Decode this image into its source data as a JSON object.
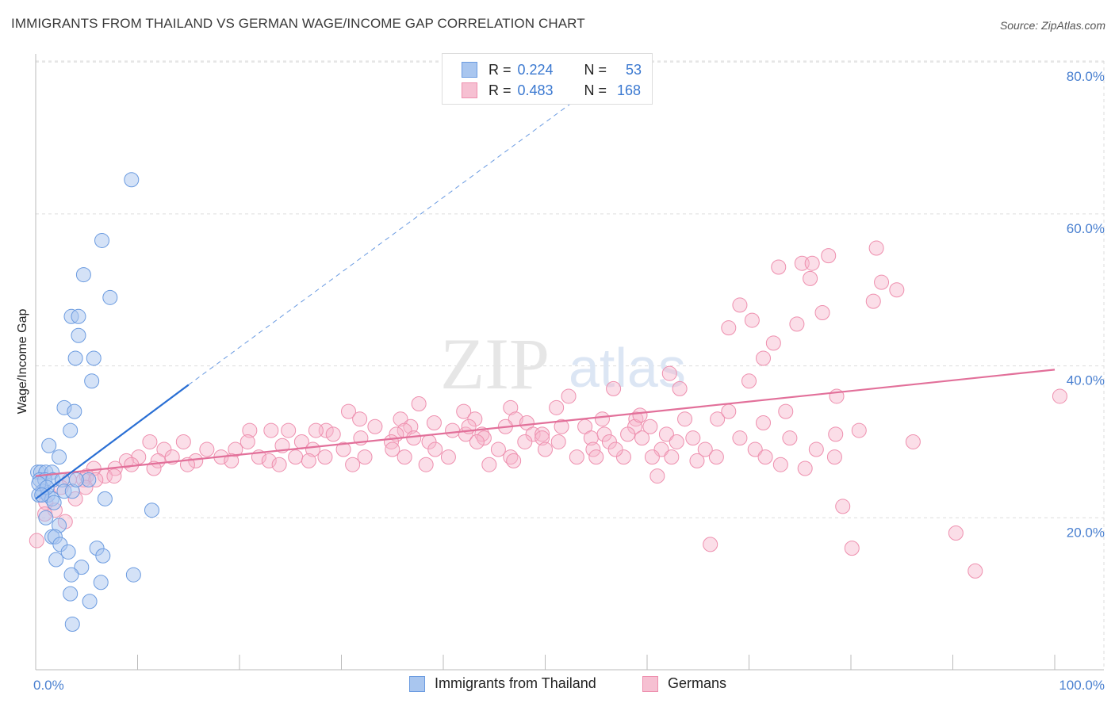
{
  "title": "IMMIGRANTS FROM THAILAND VS GERMAN WAGE/INCOME GAP CORRELATION CHART",
  "source": "Source: ZipAtlas.com",
  "watermark": {
    "zip": "ZIP",
    "atlas": "atlas"
  },
  "legend": {
    "rows": [
      {
        "r_label": "R =",
        "r_value": "0.224",
        "n_label": "N =",
        "n_value": "53"
      },
      {
        "r_label": "R =",
        "r_value": "0.483",
        "n_label": "N =",
        "n_value": "168"
      }
    ]
  },
  "bottom_legend": {
    "series1": "Immigrants from Thailand",
    "series2": "Germans"
  },
  "colors": {
    "blue_fill": "#a9c6ef",
    "blue_stroke": "#6b9be0",
    "blue_line": "#2a6fd4",
    "pink_fill": "#f6b6cc",
    "pink_stroke": "#ee8fae",
    "pink_line": "#e2709a",
    "tick_text": "#4a80d0",
    "grid": "#dddddd"
  },
  "chart_data": {
    "type": "scatter",
    "title": "IMMIGRANTS FROM THAILAND VS GERMAN WAGE/INCOME GAP CORRELATION CHART",
    "xlabel": "",
    "ylabel": "Wage/Income Gap",
    "xlim": [
      0,
      100
    ],
    "ylim": [
      0,
      85
    ],
    "x_ticks": [
      {
        "v": 0,
        "label": "0.0%"
      },
      {
        "v": 100,
        "label": "100.0%"
      }
    ],
    "y_ticks": [
      {
        "v": 20,
        "label": "20.0%"
      },
      {
        "v": 40,
        "label": "40.0%"
      },
      {
        "v": 60,
        "label": "60.0%"
      },
      {
        "v": 80,
        "label": "80.0%"
      }
    ],
    "grid": "horizontal dashed",
    "series": [
      {
        "name": "Immigrants from Thailand",
        "R": 0.224,
        "N": 53,
        "trend": {
          "x0": 0,
          "y0": 22.5,
          "x1": 15,
          "y1": 37.5,
          "dashed_to_x": 54,
          "dashed_to_y": 76
        },
        "points": [
          [
            9.4,
            64.5
          ],
          [
            6.5,
            56.5
          ],
          [
            4.7,
            52.0
          ],
          [
            7.3,
            49.0
          ],
          [
            3.5,
            46.5
          ],
          [
            4.2,
            46.5
          ],
          [
            4.2,
            44.0
          ],
          [
            3.9,
            41.0
          ],
          [
            5.7,
            41.0
          ],
          [
            5.5,
            38.0
          ],
          [
            2.8,
            34.5
          ],
          [
            3.8,
            34.0
          ],
          [
            3.4,
            31.5
          ],
          [
            1.3,
            29.5
          ],
          [
            2.3,
            28.0
          ],
          [
            0.2,
            26.0
          ],
          [
            0.5,
            26.0
          ],
          [
            1.0,
            26.0
          ],
          [
            1.6,
            26.0
          ],
          [
            0.4,
            25.0
          ],
          [
            0.9,
            25.0
          ],
          [
            1.7,
            25.0
          ],
          [
            2.6,
            25.0
          ],
          [
            5.2,
            25.0
          ],
          [
            0.7,
            23.5
          ],
          [
            2.8,
            23.5
          ],
          [
            3.6,
            23.5
          ],
          [
            0.3,
            23.0
          ],
          [
            1.2,
            23.0
          ],
          [
            1.6,
            22.5
          ],
          [
            6.8,
            22.5
          ],
          [
            1.8,
            22.0
          ],
          [
            11.4,
            21.0
          ],
          [
            1.0,
            20.0
          ],
          [
            2.3,
            19.0
          ],
          [
            1.6,
            17.5
          ],
          [
            1.9,
            17.5
          ],
          [
            2.4,
            16.5
          ],
          [
            6.0,
            16.0
          ],
          [
            3.2,
            15.5
          ],
          [
            6.6,
            15.0
          ],
          [
            2.0,
            14.5
          ],
          [
            4.5,
            13.5
          ],
          [
            9.6,
            12.5
          ],
          [
            3.5,
            12.5
          ],
          [
            6.4,
            11.5
          ],
          [
            3.4,
            10.0
          ],
          [
            5.3,
            9.0
          ],
          [
            3.6,
            6.0
          ],
          [
            0.3,
            24.5
          ],
          [
            1.1,
            24.0
          ],
          [
            0.6,
            23.0
          ],
          [
            4.0,
            25.0
          ]
        ]
      },
      {
        "name": "Germans",
        "R": 0.483,
        "N": 168,
        "trend": {
          "x0": 0,
          "y0": 25.5,
          "x1": 100,
          "y1": 39.5
        },
        "points": [
          [
            82.5,
            55.5
          ],
          [
            77.8,
            54.5
          ],
          [
            75.2,
            53.5
          ],
          [
            76.2,
            53.5
          ],
          [
            72.9,
            53.0
          ],
          [
            76.0,
            51.5
          ],
          [
            83.0,
            51.0
          ],
          [
            84.5,
            50.0
          ],
          [
            82.2,
            48.5
          ],
          [
            69.1,
            48.0
          ],
          [
            77.2,
            47.0
          ],
          [
            70.3,
            46.0
          ],
          [
            74.7,
            45.5
          ],
          [
            68.0,
            45.0
          ],
          [
            72.4,
            43.0
          ],
          [
            71.4,
            41.0
          ],
          [
            62.2,
            39.0
          ],
          [
            70.0,
            38.0
          ],
          [
            56.7,
            37.0
          ],
          [
            63.2,
            37.0
          ],
          [
            78.6,
            36.0
          ],
          [
            52.3,
            36.0
          ],
          [
            100.5,
            36.0
          ],
          [
            37.6,
            35.0
          ],
          [
            51.1,
            34.5
          ],
          [
            46.6,
            34.5
          ],
          [
            73.6,
            34.0
          ],
          [
            42.0,
            34.0
          ],
          [
            30.7,
            34.0
          ],
          [
            47.1,
            33.0
          ],
          [
            55.6,
            33.0
          ],
          [
            63.7,
            33.0
          ],
          [
            35.8,
            33.0
          ],
          [
            31.8,
            33.0
          ],
          [
            43.1,
            33.0
          ],
          [
            58.9,
            33.0
          ],
          [
            71.4,
            32.5
          ],
          [
            39.1,
            32.5
          ],
          [
            48.2,
            32.5
          ],
          [
            51.6,
            32.0
          ],
          [
            60.3,
            32.0
          ],
          [
            33.3,
            32.0
          ],
          [
            58.8,
            32.0
          ],
          [
            36.8,
            32.0
          ],
          [
            46.1,
            32.0
          ],
          [
            53.9,
            32.0
          ],
          [
            24.8,
            31.5
          ],
          [
            28.5,
            31.5
          ],
          [
            36.2,
            31.5
          ],
          [
            40.9,
            31.5
          ],
          [
            55.8,
            31.0
          ],
          [
            61.9,
            31.0
          ],
          [
            43.8,
            31.0
          ],
          [
            48.8,
            31.0
          ],
          [
            21.0,
            31.5
          ],
          [
            23.1,
            31.5
          ],
          [
            27.5,
            31.5
          ],
          [
            29.2,
            31.0
          ],
          [
            35.4,
            31.0
          ],
          [
            42.2,
            31.0
          ],
          [
            49.7,
            31.0
          ],
          [
            58.1,
            31.0
          ],
          [
            78.5,
            31.0
          ],
          [
            37.1,
            30.5
          ],
          [
            44.0,
            30.5
          ],
          [
            49.7,
            30.5
          ],
          [
            54.5,
            30.5
          ],
          [
            59.5,
            30.5
          ],
          [
            64.5,
            30.5
          ],
          [
            74.0,
            30.5
          ],
          [
            11.2,
            30.0
          ],
          [
            14.5,
            30.0
          ],
          [
            20.8,
            30.0
          ],
          [
            26.1,
            30.0
          ],
          [
            31.9,
            30.5
          ],
          [
            34.9,
            30.0
          ],
          [
            38.6,
            30.0
          ],
          [
            43.3,
            30.0
          ],
          [
            48.0,
            30.0
          ],
          [
            51.3,
            30.0
          ],
          [
            56.3,
            30.0
          ],
          [
            62.9,
            30.0
          ],
          [
            12.6,
            29.0
          ],
          [
            16.8,
            29.0
          ],
          [
            19.6,
            29.0
          ],
          [
            24.2,
            29.5
          ],
          [
            27.2,
            29.0
          ],
          [
            30.2,
            29.0
          ],
          [
            35.0,
            29.0
          ],
          [
            39.2,
            29.0
          ],
          [
            45.4,
            29.0
          ],
          [
            50.0,
            29.0
          ],
          [
            54.7,
            29.0
          ],
          [
            61.4,
            29.0
          ],
          [
            65.7,
            29.0
          ],
          [
            70.6,
            29.0
          ],
          [
            76.6,
            29.0
          ],
          [
            10.1,
            28.0
          ],
          [
            13.4,
            28.0
          ],
          [
            18.2,
            28.0
          ],
          [
            21.9,
            28.0
          ],
          [
            25.5,
            28.0
          ],
          [
            28.4,
            28.0
          ],
          [
            32.3,
            28.0
          ],
          [
            36.2,
            28.0
          ],
          [
            40.5,
            28.0
          ],
          [
            46.6,
            28.0
          ],
          [
            53.1,
            28.0
          ],
          [
            57.7,
            28.0
          ],
          [
            62.4,
            28.0
          ],
          [
            66.8,
            28.0
          ],
          [
            71.6,
            28.0
          ],
          [
            8.9,
            27.5
          ],
          [
            12.0,
            27.5
          ],
          [
            15.7,
            27.5
          ],
          [
            19.2,
            27.5
          ],
          [
            22.9,
            27.5
          ],
          [
            26.8,
            27.5
          ],
          [
            9.4,
            27.0
          ],
          [
            14.9,
            27.0
          ],
          [
            23.9,
            27.0
          ],
          [
            31.1,
            27.0
          ],
          [
            38.3,
            27.0
          ],
          [
            44.5,
            27.0
          ],
          [
            55.0,
            28.0
          ],
          [
            60.5,
            28.0
          ],
          [
            5.7,
            26.5
          ],
          [
            7.8,
            26.5
          ],
          [
            11.6,
            26.5
          ],
          [
            5.0,
            25.5
          ],
          [
            6.8,
            25.5
          ],
          [
            7.7,
            25.5
          ],
          [
            3.3,
            25.0
          ],
          [
            4.7,
            25.0
          ],
          [
            5.9,
            25.0
          ],
          [
            2.5,
            24.0
          ],
          [
            4.9,
            24.0
          ],
          [
            1.0,
            22.0
          ],
          [
            3.9,
            22.5
          ],
          [
            1.9,
            21.0
          ],
          [
            0.9,
            20.5
          ],
          [
            2.9,
            19.5
          ],
          [
            0.1,
            17.0
          ],
          [
            66.2,
            16.5
          ],
          [
            80.1,
            16.0
          ],
          [
            90.3,
            18.0
          ],
          [
            92.2,
            13.0
          ],
          [
            79.2,
            21.5
          ],
          [
            75.5,
            26.5
          ],
          [
            66.9,
            33.0
          ],
          [
            80.8,
            31.5
          ],
          [
            86.1,
            30.0
          ],
          [
            59.3,
            33.5
          ],
          [
            69.1,
            30.5
          ],
          [
            73.1,
            27.0
          ],
          [
            78.4,
            28.0
          ],
          [
            42.5,
            32.0
          ],
          [
            56.9,
            29.0
          ],
          [
            46.9,
            27.5
          ],
          [
            68.0,
            34.0
          ],
          [
            64.9,
            27.5
          ],
          [
            61.0,
            25.5
          ]
        ]
      }
    ]
  }
}
